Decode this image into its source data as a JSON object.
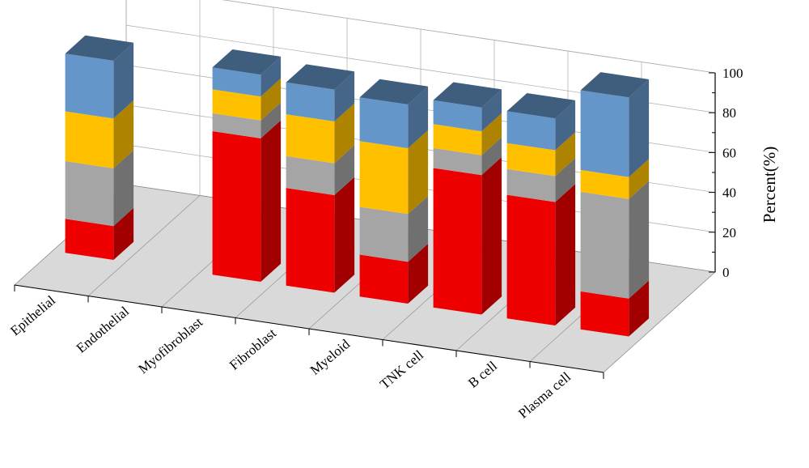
{
  "chart_data": {
    "type": "bar",
    "subtype": "3d-stacked-column",
    "title": "",
    "xlabel": "",
    "ylabel": "Percent(%)",
    "ylim": [
      0,
      100
    ],
    "yticks": [
      "0",
      "20",
      "40",
      "60",
      "80",
      "100"
    ],
    "grid": true,
    "legend": "none",
    "categories": [
      "Epithelial",
      "Endothelial",
      "Myofibroblast",
      "Fibroblast",
      "Myeloid",
      "TNK cell",
      "B cell",
      "Plasma cell"
    ],
    "series": [
      {
        "color": "#ee0000",
        "values": [
          17,
          0,
          72,
          49,
          21,
          70,
          62,
          19
        ]
      },
      {
        "color": "#a5a5a5",
        "values": [
          29,
          0,
          9,
          16,
          24,
          10,
          13,
          50
        ]
      },
      {
        "color": "#ffc000",
        "values": [
          25,
          0,
          12,
          21,
          33,
          12,
          13,
          11
        ]
      },
      {
        "color": "#6596c9",
        "values": [
          29,
          0,
          11,
          16,
          22,
          12,
          16,
          40
        ]
      }
    ]
  }
}
